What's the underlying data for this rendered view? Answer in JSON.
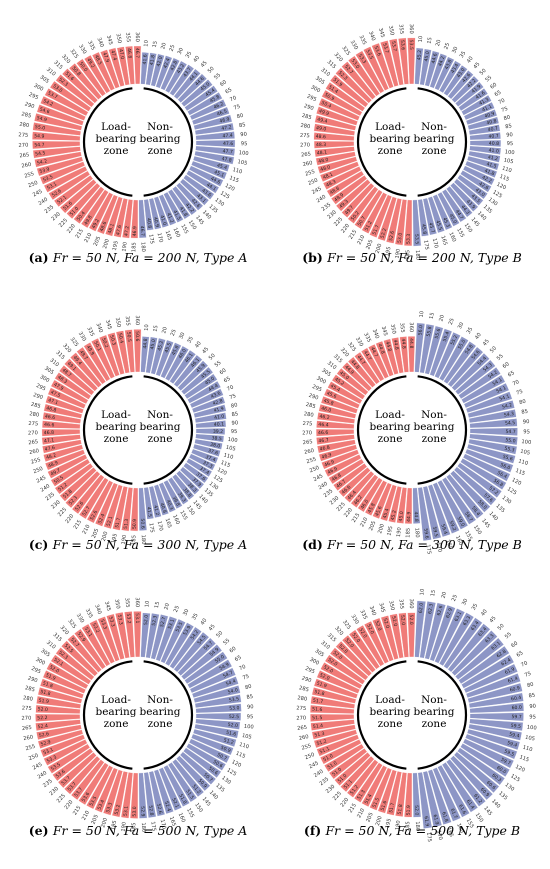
{
  "colors": {
    "load": "#f07b78",
    "nonload": "#8d96c6"
  },
  "zones": {
    "load_line1": "Load-",
    "load_line2": "bearing",
    "load_line3": "zone",
    "non_line1": "Non-",
    "non_line2": "bearing",
    "non_line3": "zone"
  },
  "chart_data": [
    {
      "type": "bar",
      "panel": "a",
      "caption_letter": "(a)",
      "caption_text": "Fr = 50 N, Fa = 200 N, Type A",
      "categories": [
        10,
        15,
        20,
        25,
        30,
        35,
        40,
        45,
        50,
        55,
        60,
        65,
        70,
        75,
        80,
        85,
        90,
        95,
        100,
        105,
        110,
        115,
        120,
        125,
        130,
        135,
        140,
        145,
        150,
        155,
        160,
        165,
        170,
        175,
        180,
        185,
        190,
        195,
        200,
        205,
        210,
        215,
        220,
        225,
        230,
        235,
        240,
        245,
        250,
        255,
        260,
        265,
        270,
        275,
        280,
        285,
        290,
        295,
        300,
        305,
        310,
        315,
        320,
        325,
        330,
        335,
        340,
        345,
        350,
        355,
        360
      ],
      "values": [
        41.6,
        41.8,
        42.0,
        42.4,
        42.8,
        43.2,
        43.7,
        44.1,
        44.6,
        45.0,
        45.4,
        45.8,
        46.2,
        46.5,
        46.9,
        47.2,
        47.4,
        47.6,
        47.7,
        47.8,
        45.4,
        45.1,
        44.6,
        44.1,
        43.6,
        43.1,
        42.6,
        42.2,
        41.8,
        41.5,
        41.2,
        41.0,
        40.9,
        40.8,
        46.7,
        46.9,
        47.2,
        47.6,
        48.1,
        48.6,
        49.2,
        49.8,
        50.4,
        51.0,
        51.6,
        52.1,
        52.6,
        53.1,
        53.5,
        53.9,
        54.2,
        54.5,
        54.7,
        54.9,
        55.0,
        54.9,
        54.6,
        54.2,
        53.7,
        53.0,
        52.3,
        51.6,
        50.8,
        50.0,
        49.2,
        48.5,
        47.9,
        47.4,
        47.0,
        46.8,
        46.7
      ],
      "load_range": [
        185,
        360
      ]
    },
    {
      "type": "bar",
      "panel": "b",
      "caption_letter": "(b)",
      "caption_text": "Fr = 50 N, Fa = 200 N, Type B",
      "categories": [
        10,
        15,
        20,
        25,
        30,
        35,
        40,
        45,
        50,
        55,
        60,
        65,
        70,
        75,
        80,
        85,
        90,
        95,
        100,
        105,
        110,
        115,
        120,
        125,
        130,
        135,
        140,
        145,
        150,
        155,
        160,
        165,
        170,
        175,
        180,
        185,
        190,
        195,
        200,
        205,
        210,
        215,
        220,
        225,
        230,
        235,
        240,
        245,
        250,
        255,
        260,
        265,
        270,
        275,
        280,
        285,
        290,
        295,
        300,
        305,
        310,
        315,
        320,
        325,
        330,
        335,
        340,
        345,
        350,
        355,
        360
      ],
      "values": [
        45.2,
        45.0,
        44.6,
        44.2,
        43.8,
        43.4,
        43.0,
        42.6,
        42.2,
        41.9,
        41.6,
        41.3,
        41.1,
        40.9,
        40.8,
        40.7,
        40.7,
        40.8,
        41.0,
        41.2,
        41.5,
        41.8,
        42.2,
        42.6,
        43.0,
        43.5,
        43.9,
        44.3,
        44.7,
        45.0,
        45.3,
        45.5,
        45.7,
        45.8,
        53.5,
        53.3,
        53.0,
        52.6,
        52.2,
        51.7,
        51.2,
        50.7,
        50.2,
        49.7,
        49.3,
        48.9,
        48.6,
        48.3,
        48.1,
        48.0,
        48.0,
        48.1,
        48.3,
        48.6,
        49.0,
        49.4,
        49.9,
        50.4,
        50.9,
        51.4,
        51.9,
        52.3,
        52.7,
        53.0,
        53.3,
        53.5,
        53.6,
        53.7,
        53.7,
        53.6,
        53.5
      ],
      "load_range": [
        185,
        360
      ]
    },
    {
      "type": "bar",
      "panel": "c",
      "caption_letter": "(c)",
      "caption_text": "Fr = 50 N, Fa = 300 N, Type A",
      "categories": [
        10,
        15,
        20,
        25,
        30,
        35,
        40,
        45,
        50,
        55,
        60,
        65,
        70,
        75,
        80,
        85,
        90,
        95,
        100,
        105,
        110,
        115,
        120,
        125,
        130,
        135,
        140,
        145,
        150,
        155,
        160,
        165,
        170,
        175,
        180,
        185,
        190,
        195,
        200,
        205,
        210,
        215,
        220,
        225,
        230,
        235,
        240,
        245,
        250,
        255,
        260,
        265,
        270,
        275,
        280,
        285,
        290,
        295,
        300,
        305,
        310,
        315,
        320,
        325,
        330,
        335,
        340,
        345,
        350,
        355,
        360
      ],
      "values": [
        44.8,
        45.0,
        45.2,
        45.5,
        45.8,
        46.0,
        46.1,
        46.1,
        45.9,
        45.5,
        45.0,
        44.4,
        43.6,
        42.8,
        41.9,
        41.0,
        40.1,
        39.2,
        38.5,
        38.0,
        37.6,
        37.4,
        37.3,
        37.4,
        37.6,
        37.9,
        38.3,
        38.8,
        39.3,
        39.8,
        40.3,
        40.8,
        41.2,
        41.5,
        50.6,
        50.9,
        51.3,
        51.7,
        52.1,
        52.4,
        52.6,
        52.7,
        52.6,
        52.3,
        51.8,
        51.2,
        50.5,
        49.7,
        48.9,
        48.2,
        47.6,
        47.1,
        46.8,
        46.6,
        46.6,
        46.8,
        47.1,
        47.5,
        47.9,
        48.3,
        48.7,
        49.1,
        49.4,
        49.7,
        49.9,
        50.1,
        50.2,
        50.3,
        50.4,
        50.5,
        50.6
      ],
      "load_range": [
        185,
        360
      ]
    },
    {
      "type": "bar",
      "panel": "d",
      "caption_letter": "(d)",
      "caption_text": "Fr = 50 N, Fa = 300 N, Type B",
      "categories": [
        10,
        15,
        20,
        25,
        30,
        35,
        40,
        45,
        50,
        55,
        60,
        65,
        70,
        75,
        80,
        85,
        90,
        95,
        100,
        105,
        110,
        115,
        120,
        125,
        130,
        135,
        140,
        145,
        150,
        155,
        160,
        165,
        170,
        175,
        180,
        185,
        190,
        195,
        200,
        205,
        210,
        215,
        220,
        225,
        230,
        235,
        240,
        245,
        250,
        255,
        260,
        265,
        270,
        275,
        280,
        285,
        290,
        295,
        300,
        305,
        310,
        315,
        320,
        325,
        330,
        335,
        340,
        345,
        350,
        355,
        360
      ],
      "values": [
        56.0,
        55.8,
        55.6,
        55.4,
        55.2,
        55.0,
        54.8,
        54.6,
        54.4,
        54.3,
        54.2,
        54.1,
        54.1,
        54.1,
        54.2,
        54.3,
        54.5,
        54.7,
        55.0,
        55.3,
        55.6,
        56.0,
        56.4,
        56.8,
        57.2,
        57.6,
        58.0,
        58.4,
        58.7,
        59.0,
        59.2,
        59.4,
        59.5,
        59.6,
        44.8,
        44.9,
        45.0,
        45.2,
        45.4,
        45.6,
        45.8,
        46.0,
        46.2,
        46.4,
        46.6,
        46.7,
        46.8,
        46.9,
        46.9,
        46.9,
        46.8,
        46.7,
        46.6,
        46.4,
        46.2,
        46.0,
        45.8,
        45.6,
        45.4,
        45.2,
        45.0,
        44.9,
        44.8,
        44.7,
        44.7,
        44.7,
        44.8,
        44.8,
        44.8,
        44.8,
        44.8
      ],
      "load_range": [
        185,
        360
      ]
    },
    {
      "type": "bar",
      "panel": "e",
      "caption_letter": "(e)",
      "caption_text": "Fr = 50 N, Fa = 500 N, Type A",
      "categories": [
        10,
        15,
        20,
        25,
        30,
        35,
        40,
        45,
        50,
        55,
        60,
        65,
        70,
        75,
        80,
        85,
        90,
        95,
        100,
        105,
        110,
        115,
        120,
        125,
        130,
        135,
        140,
        145,
        150,
        155,
        160,
        165,
        170,
        175,
        180,
        185,
        190,
        195,
        200,
        205,
        210,
        215,
        220,
        225,
        230,
        235,
        240,
        245,
        250,
        255,
        260,
        265,
        270,
        275,
        280,
        285,
        290,
        295,
        300,
        305,
        310,
        315,
        320,
        325,
        330,
        335,
        340,
        345,
        350,
        355,
        360
      ],
      "values": [
        52.0,
        52.3,
        52.7,
        53.1,
        53.5,
        53.9,
        54.2,
        54.5,
        54.7,
        54.9,
        55.0,
        54.9,
        54.7,
        54.4,
        54.0,
        53.5,
        53.0,
        52.5,
        52.0,
        51.6,
        51.2,
        50.9,
        50.7,
        50.6,
        50.6,
        50.7,
        50.9,
        51.2,
        51.5,
        51.8,
        52.1,
        52.4,
        52.6,
        52.8,
        52.9,
        53.0,
        53.1,
        53.2,
        53.3,
        53.4,
        53.5,
        53.6,
        53.7,
        53.7,
        53.7,
        53.6,
        53.5,
        53.3,
        53.1,
        52.9,
        52.6,
        52.4,
        52.2,
        52.0,
        51.9,
        51.8,
        51.8,
        51.9,
        52.0,
        52.1,
        52.3,
        52.5,
        52.7,
        52.9,
        53.1,
        53.2,
        53.3,
        53.3,
        53.3,
        53.2,
        53.1
      ],
      "load_range": [
        185,
        360
      ]
    },
    {
      "type": "bar",
      "panel": "f",
      "caption_letter": "(f)",
      "caption_text": "Fr = 50 N, Fa = 500 N, Type B",
      "categories": [
        10,
        15,
        20,
        25,
        30,
        35,
        40,
        45,
        50,
        55,
        60,
        65,
        70,
        75,
        80,
        85,
        90,
        95,
        100,
        105,
        110,
        115,
        120,
        125,
        130,
        135,
        140,
        145,
        150,
        155,
        160,
        165,
        170,
        175,
        180,
        185,
        190,
        195,
        200,
        205,
        210,
        215,
        220,
        225,
        230,
        235,
        240,
        245,
        250,
        255,
        260,
        265,
        270,
        275,
        280,
        285,
        290,
        295,
        300,
        305,
        310,
        315,
        320,
        325,
        330,
        335,
        340,
        345,
        350,
        355,
        360
      ],
      "values": [
        62.0,
        62.3,
        62.6,
        62.9,
        63.1,
        63.3,
        63.4,
        63.4,
        63.3,
        63.1,
        62.8,
        62.4,
        61.9,
        61.4,
        60.9,
        60.4,
        60.0,
        59.7,
        59.5,
        59.4,
        59.4,
        59.5,
        59.7,
        60.0,
        60.3,
        60.6,
        60.9,
        61.2,
        61.4,
        61.6,
        61.7,
        61.8,
        61.9,
        61.9,
        52.0,
        51.9,
        51.8,
        51.7,
        51.6,
        51.5,
        51.4,
        51.3,
        51.2,
        51.1,
        51.0,
        51.0,
        51.0,
        51.0,
        51.1,
        51.2,
        51.3,
        51.4,
        51.5,
        51.6,
        51.7,
        51.8,
        51.9,
        52.0,
        52.0,
        52.0,
        52.0,
        52.0,
        52.0,
        52.0,
        52.0,
        52.0,
        52.0,
        52.0,
        52.0,
        52.0,
        52.0
      ],
      "load_range": [
        185,
        360
      ]
    }
  ]
}
